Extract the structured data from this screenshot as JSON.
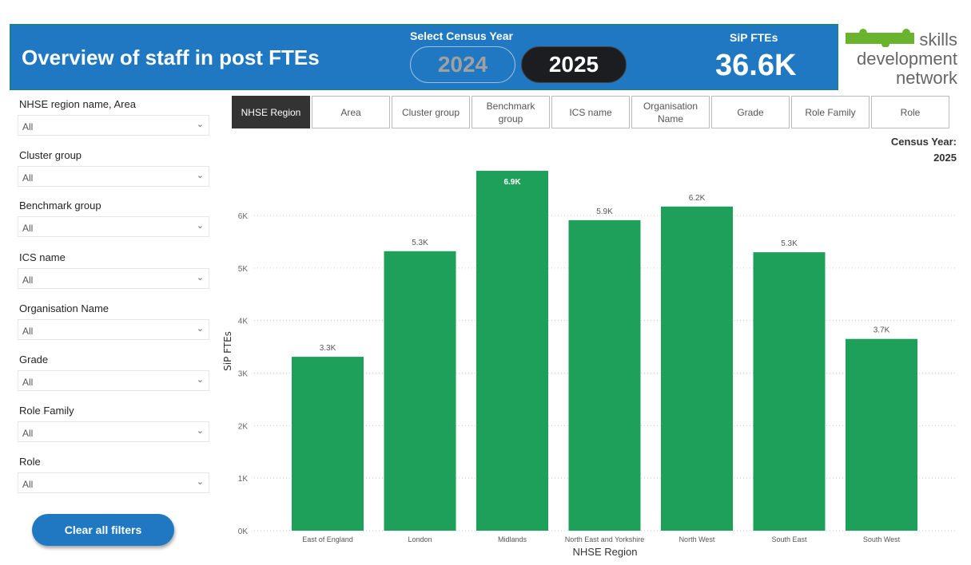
{
  "header": {
    "title": "Overview of staff in post FTEs",
    "select_label": "Select Census Year",
    "years": [
      "2024",
      "2025"
    ],
    "selected_year": "2025",
    "kpi_label": "SiP FTEs",
    "kpi_value": "36.6K"
  },
  "logo": {
    "line1": "skills",
    "line2": "development",
    "line3": "network",
    "colors": {
      "puzzle": "#6ab42d"
    }
  },
  "filters": [
    {
      "label": "NHSE region name, Area",
      "value": "All"
    },
    {
      "label": "Cluster group",
      "value": "All"
    },
    {
      "label": "Benchmark group",
      "value": "All"
    },
    {
      "label": "ICS name",
      "value": "All"
    },
    {
      "label": "Organisation Name",
      "value": "All"
    },
    {
      "label": "Grade",
      "value": "All"
    },
    {
      "label": "Role Family",
      "value": "All"
    },
    {
      "label": "Role",
      "value": "All"
    }
  ],
  "clear_label": "Clear all filters",
  "tabs": [
    "NHSE Region",
    "Area",
    "Cluster group",
    "Benchmark group",
    "ICS name",
    "Organisation Name",
    "Grade",
    "Role Family",
    "Role"
  ],
  "active_tab": "NHSE Region",
  "census": {
    "label": "Census Year:",
    "value": "2025"
  },
  "colors": {
    "header": "#1f78c1",
    "bar": "#1fa05a"
  },
  "chart_data": {
    "type": "bar",
    "categories": [
      "East of England",
      "London",
      "Midlands",
      "North East and Yorkshire",
      "North West",
      "South East",
      "South West"
    ],
    "values": [
      3310,
      5320,
      6850,
      5910,
      6170,
      5300,
      3650
    ],
    "data_labels": [
      "3.3K",
      "5.3K",
      "6.9K",
      "5.9K",
      "6.2K",
      "5.3K",
      "3.7K"
    ],
    "xlabel": "NHSE Region",
    "ylabel": "SiP FTEs",
    "yticks": [
      "0K",
      "1K",
      "2K",
      "3K",
      "4K",
      "5K",
      "6K"
    ],
    "ylim": [
      0,
      7000
    ],
    "grid": true
  }
}
